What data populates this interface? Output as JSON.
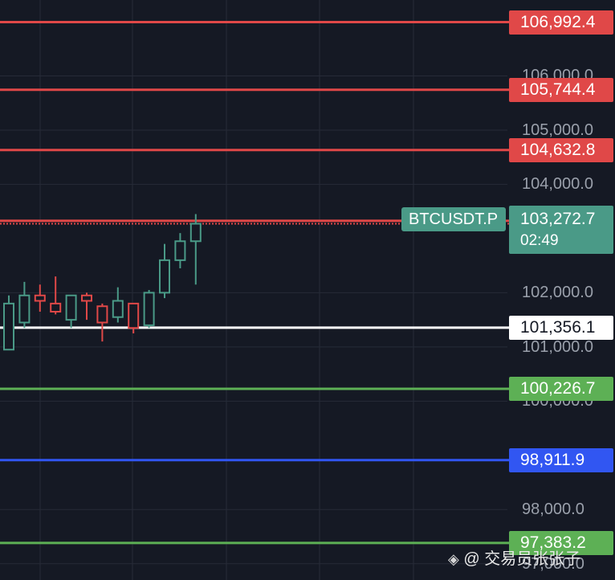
{
  "chart_data": {
    "type": "candlestick",
    "symbol": "BTCUSDT.P",
    "ylim": [
      96700,
      107400
    ],
    "grid": true,
    "last_price": "103,272.7",
    "countdown": "02:49",
    "y_ticks": [
      "106,000.0",
      "105,000.0",
      "104,000.0",
      "102,000.0",
      "101,000.0",
      "100,000.0",
      "98,000.0",
      "97,000.0"
    ],
    "y_tick_values": [
      106000,
      105000,
      104000,
      102000,
      101000,
      100000,
      98000,
      97000
    ],
    "levels": [
      {
        "value": 106992.4,
        "label": "106,992.4",
        "color": "#e04848"
      },
      {
        "value": 105744.4,
        "label": "105,744.4",
        "color": "#e04848"
      },
      {
        "value": 104632.8,
        "label": "104,632.8",
        "color": "#e04848"
      },
      {
        "value": 103327.0,
        "label": "103,327.0",
        "color": "#e04848"
      },
      {
        "value": 101356.1,
        "label": "101,356.1",
        "color": "#ffffff"
      },
      {
        "value": 100226.7,
        "label": "100,226.7",
        "color": "#5db055"
      },
      {
        "value": 98911.9,
        "label": "98,911.9",
        "color": "#3156f2"
      },
      {
        "value": 97383.2,
        "label": "97,383.2",
        "color": "#5db055"
      }
    ],
    "candles": [
      {
        "o": 100950,
        "h": 101950,
        "l": 100950,
        "c": 101800
      },
      {
        "o": 101450,
        "h": 102200,
        "l": 101350,
        "c": 101950
      },
      {
        "o": 101950,
        "h": 102150,
        "l": 101650,
        "c": 101850
      },
      {
        "o": 101800,
        "h": 102300,
        "l": 101600,
        "c": 101650
      },
      {
        "o": 101500,
        "h": 101950,
        "l": 101350,
        "c": 101950
      },
      {
        "o": 101950,
        "h": 102000,
        "l": 101500,
        "c": 101850
      },
      {
        "o": 101750,
        "h": 101800,
        "l": 101100,
        "c": 101450
      },
      {
        "o": 101550,
        "h": 102100,
        "l": 101450,
        "c": 101850
      },
      {
        "o": 101800,
        "h": 101800,
        "l": 101250,
        "c": 101350
      },
      {
        "o": 101400,
        "h": 102050,
        "l": 101350,
        "c": 102000
      },
      {
        "o": 102000,
        "h": 102900,
        "l": 101900,
        "c": 102600
      },
      {
        "o": 102600,
        "h": 103100,
        "l": 102450,
        "c": 102950
      },
      {
        "o": 102950,
        "h": 103450,
        "l": 102150,
        "c": 103272.7
      }
    ]
  },
  "watermark": {
    "logo": "◈",
    "text": "@ 交易员张张子"
  },
  "colors": {
    "up": "#4a9a87",
    "down": "#e04848",
    "grid": "#262b37",
    "last_price_line": "#e04848"
  }
}
